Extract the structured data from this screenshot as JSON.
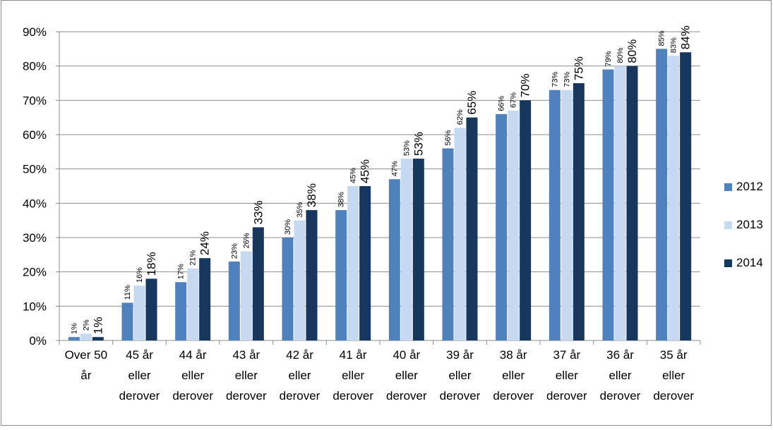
{
  "chart_data": {
    "type": "bar",
    "title": "",
    "xlabel": "",
    "ylabel": "",
    "ylim": [
      0,
      90
    ],
    "yticks": [
      "0%",
      "10%",
      "20%",
      "30%",
      "40%",
      "50%",
      "60%",
      "70%",
      "80%",
      "90%"
    ],
    "grid": true,
    "legend_position": "right",
    "categories": [
      [
        "Over 50",
        "år"
      ],
      [
        "45 år",
        "eller",
        "derover"
      ],
      [
        "44 år",
        "eller",
        "derover"
      ],
      [
        "43 år",
        "eller",
        "derover"
      ],
      [
        "42 år",
        "eller",
        "derover"
      ],
      [
        "41 år",
        "eller",
        "derover"
      ],
      [
        "40 år",
        "eller",
        "derover"
      ],
      [
        "39 år",
        "eller",
        "derover"
      ],
      [
        "38 år",
        "eller",
        "derover"
      ],
      [
        "37 år",
        "eller",
        "derover"
      ],
      [
        "36 år",
        "eller",
        "derover"
      ],
      [
        "35 år",
        "eller",
        "derover"
      ]
    ],
    "series": [
      {
        "name": "2012",
        "color": "#4f81bd",
        "values": [
          1,
          11,
          17,
          23,
          30,
          38,
          47,
          56,
          66,
          73,
          79,
          85
        ],
        "labels": [
          "1%",
          "11%",
          "17%",
          "23%",
          "30%",
          "38%",
          "47%",
          "56%",
          "66%",
          "73%",
          "79%",
          "85%"
        ]
      },
      {
        "name": "2013",
        "color": "#c6d9f1",
        "values": [
          2,
          16,
          21,
          26,
          35,
          45,
          53,
          62,
          67,
          73,
          80,
          83
        ],
        "labels": [
          "2%",
          "16%",
          "21%",
          "26%",
          "35%",
          "45%",
          "53%",
          "62%",
          "67%",
          "73%",
          "80%",
          "83%"
        ]
      },
      {
        "name": "2014",
        "color": "#17375e",
        "values": [
          1,
          18,
          24,
          33,
          38,
          45,
          53,
          65,
          70,
          75,
          80,
          84
        ],
        "labels": [
          "1%",
          "18%",
          "24%",
          "33%",
          "38%",
          "45%",
          "53%",
          "65%",
          "70%",
          "75%",
          "80%",
          "84%"
        ]
      }
    ]
  }
}
